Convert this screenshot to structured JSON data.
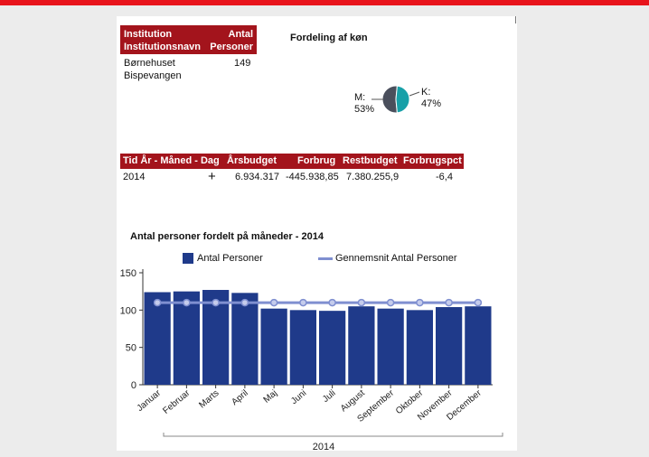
{
  "inst_table": {
    "headers": [
      [
        "Institution",
        "Institutionsnavn"
      ],
      [
        "Antal",
        "Personer"
      ]
    ],
    "row": {
      "name_line1": "Børnehuset",
      "name_line2": "Bispevangen",
      "count": "149"
    }
  },
  "gender": {
    "title": "Fordeling af køn",
    "slices": [
      {
        "label": "M:",
        "pct": 53,
        "pct_text": "53%",
        "color": "#4a4f5c"
      },
      {
        "label": "K:",
        "pct": 47,
        "pct_text": "47%",
        "color": "#17a0a8"
      }
    ]
  },
  "budget_table": {
    "headers": [
      "Tid År - Måned - Dag",
      "Årsbudget",
      "Forbrug",
      "Restbudget",
      "Forbrugspct"
    ],
    "row": {
      "year": "2014",
      "expand": "+",
      "aarsbudget": "6.934.317",
      "forbrug": "-445.938,85",
      "restbudget": "7.380.255,9",
      "forbrugspct": "-6,4"
    }
  },
  "chart_data": {
    "type": "bar",
    "title": "Antal personer fordelt på måneder - 2014",
    "categories": [
      "Januar",
      "Februar",
      "Marts",
      "April",
      "Maj",
      "Juni",
      "Juli",
      "August",
      "September",
      "Oktober",
      "November",
      "December"
    ],
    "series": [
      {
        "name": "Antal Personer",
        "type": "bar",
        "color": "#1f3a8a",
        "values": [
          124,
          125,
          127,
          123,
          102,
          100,
          99,
          105,
          102,
          100,
          104,
          105
        ]
      },
      {
        "name": "Gennemsnit Antal Personer",
        "type": "line",
        "color": "#7f8fd0",
        "values": [
          110,
          110,
          110,
          110,
          110,
          110,
          110,
          110,
          110,
          110,
          110,
          110
        ]
      }
    ],
    "yticks": [
      0,
      50,
      100,
      150
    ],
    "ylim": [
      0,
      150
    ],
    "xgroup_label": "2014",
    "legend_position": "top",
    "grid": false
  }
}
